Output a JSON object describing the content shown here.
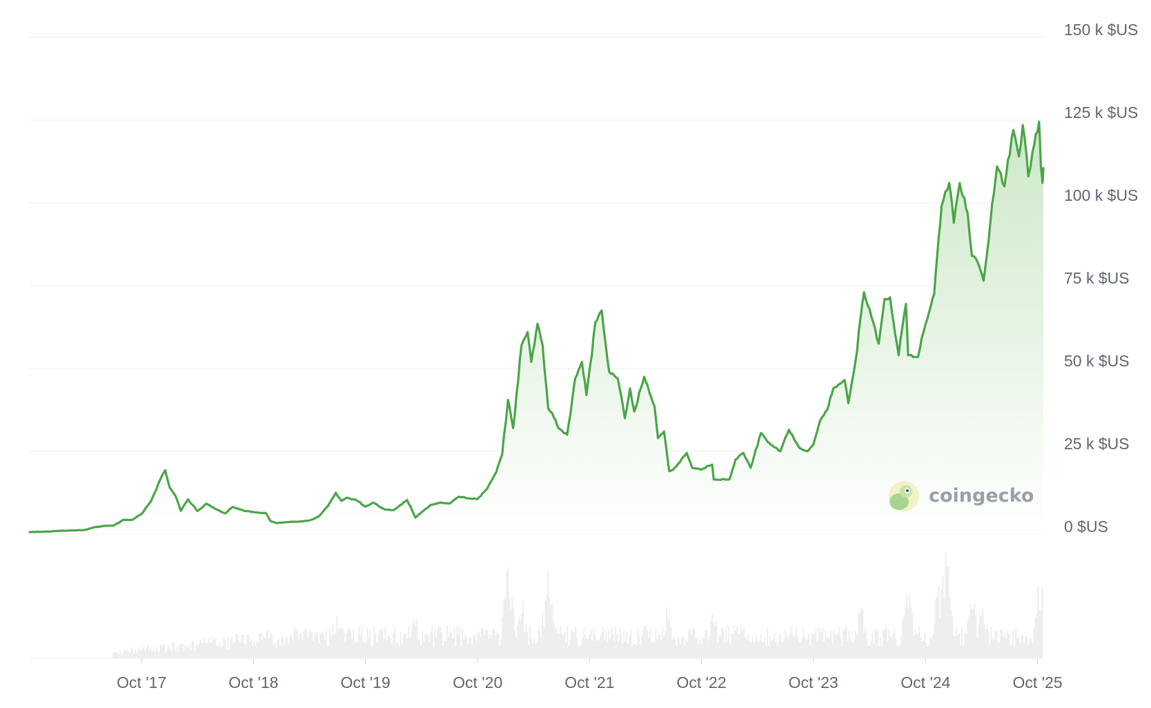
{
  "chart_data": {
    "type": "area",
    "title": "",
    "xlabel": "",
    "ylabel": "",
    "ylim": [
      0,
      150000
    ],
    "y_unit": "$US",
    "y_ticks": [
      {
        "value": 0,
        "label": "0 $US"
      },
      {
        "value": 25000,
        "label": "25 k $US"
      },
      {
        "value": 50000,
        "label": "50 k $US"
      },
      {
        "value": 75000,
        "label": "75 k $US"
      },
      {
        "value": 100000,
        "label": "100 k $US"
      },
      {
        "value": 125000,
        "label": "125 k $US"
      },
      {
        "value": 150000,
        "label": "150 k $US"
      }
    ],
    "x_range": [
      "2016-10-01",
      "2025-10-20"
    ],
    "x_ticks": [
      {
        "date": "2017-10-01",
        "label": "Oct '17"
      },
      {
        "date": "2018-10-01",
        "label": "Oct '18"
      },
      {
        "date": "2019-10-01",
        "label": "Oct '19"
      },
      {
        "date": "2020-10-01",
        "label": "Oct '20"
      },
      {
        "date": "2021-10-01",
        "label": "Oct '21"
      },
      {
        "date": "2022-10-01",
        "label": "Oct '22"
      },
      {
        "date": "2023-10-01",
        "label": "Oct '23"
      },
      {
        "date": "2024-10-01",
        "label": "Oct '24"
      },
      {
        "date": "2025-10-01",
        "label": "Oct '25"
      }
    ],
    "grid": true,
    "colors": {
      "line": "#4aa547",
      "fill_top": "#cde8c8",
      "volume": "#eeeef1"
    },
    "series": [
      {
        "values": [
          [
            "2016-10-01",
            610
          ],
          [
            "2016-12-01",
            780
          ],
          [
            "2017-01-01",
            1000
          ],
          [
            "2017-02-01",
            1050
          ],
          [
            "2017-03-01",
            1150
          ],
          [
            "2017-04-01",
            1300
          ],
          [
            "2017-05-01",
            2100
          ],
          [
            "2017-06-01",
            2500
          ],
          [
            "2017-07-01",
            2550
          ],
          [
            "2017-08-01",
            4300
          ],
          [
            "2017-09-01",
            4300
          ],
          [
            "2017-10-01",
            6100
          ],
          [
            "2017-11-01",
            10000
          ],
          [
            "2017-12-01",
            16500
          ],
          [
            "2017-12-17",
            19300
          ],
          [
            "2018-01-01",
            14000
          ],
          [
            "2018-01-20",
            11500
          ],
          [
            "2018-02-06",
            7000
          ],
          [
            "2018-03-01",
            10500
          ],
          [
            "2018-04-01",
            7000
          ],
          [
            "2018-05-01",
            9200
          ],
          [
            "2018-06-01",
            7500
          ],
          [
            "2018-07-01",
            6300
          ],
          [
            "2018-07-25",
            8200
          ],
          [
            "2018-09-01",
            7000
          ],
          [
            "2018-10-15",
            6500
          ],
          [
            "2018-11-10",
            6400
          ],
          [
            "2018-11-25",
            4000
          ],
          [
            "2018-12-15",
            3300
          ],
          [
            "2019-01-15",
            3600
          ],
          [
            "2019-03-01",
            3800
          ],
          [
            "2019-04-01",
            4100
          ],
          [
            "2019-05-01",
            5300
          ],
          [
            "2019-06-01",
            8500
          ],
          [
            "2019-06-26",
            12500
          ],
          [
            "2019-07-15",
            10000
          ],
          [
            "2019-08-01",
            11000
          ],
          [
            "2019-09-01",
            10300
          ],
          [
            "2019-10-01",
            8300
          ],
          [
            "2019-10-26",
            9500
          ],
          [
            "2019-12-01",
            7500
          ],
          [
            "2020-01-01",
            7200
          ],
          [
            "2020-02-14",
            10300
          ],
          [
            "2020-03-12",
            5000
          ],
          [
            "2020-04-01",
            6600
          ],
          [
            "2020-05-01",
            8800
          ],
          [
            "2020-06-01",
            9500
          ],
          [
            "2020-07-01",
            9200
          ],
          [
            "2020-08-01",
            11300
          ],
          [
            "2020-09-01",
            10800
          ],
          [
            "2020-10-01",
            10600
          ],
          [
            "2020-11-01",
            13700
          ],
          [
            "2020-12-01",
            18800
          ],
          [
            "2020-12-20",
            24000
          ],
          [
            "2021-01-08",
            40500
          ],
          [
            "2021-01-25",
            32000
          ],
          [
            "2021-02-21",
            57000
          ],
          [
            "2021-03-13",
            61000
          ],
          [
            "2021-03-25",
            52000
          ],
          [
            "2021-04-14",
            63500
          ],
          [
            "2021-05-01",
            57000
          ],
          [
            "2021-05-19",
            38000
          ],
          [
            "2021-06-01",
            36500
          ],
          [
            "2021-06-22",
            32000
          ],
          [
            "2021-07-20",
            30000
          ],
          [
            "2021-08-15",
            47000
          ],
          [
            "2021-09-06",
            52000
          ],
          [
            "2021-09-21",
            42000
          ],
          [
            "2021-10-20",
            64000
          ],
          [
            "2021-11-10",
            67500
          ],
          [
            "2021-12-04",
            49000
          ],
          [
            "2022-01-01",
            47000
          ],
          [
            "2022-01-24",
            35000
          ],
          [
            "2022-02-10",
            44000
          ],
          [
            "2022-02-24",
            37000
          ],
          [
            "2022-03-28",
            47500
          ],
          [
            "2022-05-01",
            38500
          ],
          [
            "2022-05-12",
            29000
          ],
          [
            "2022-06-01",
            31000
          ],
          [
            "2022-06-18",
            19000
          ],
          [
            "2022-07-01",
            19500
          ],
          [
            "2022-08-14",
            24500
          ],
          [
            "2022-09-01",
            20000
          ],
          [
            "2022-10-01",
            19500
          ],
          [
            "2022-11-05",
            21000
          ],
          [
            "2022-11-10",
            16500
          ],
          [
            "2022-12-31",
            16500
          ],
          [
            "2023-01-20",
            22500
          ],
          [
            "2023-02-15",
            24500
          ],
          [
            "2023-03-10",
            20000
          ],
          [
            "2023-04-13",
            30500
          ],
          [
            "2023-05-15",
            27000
          ],
          [
            "2023-06-15",
            25000
          ],
          [
            "2023-07-13",
            31500
          ],
          [
            "2023-08-17",
            26000
          ],
          [
            "2023-09-11",
            25000
          ],
          [
            "2023-10-01",
            27000
          ],
          [
            "2023-10-24",
            34500
          ],
          [
            "2023-11-15",
            37500
          ],
          [
            "2023-12-05",
            44000
          ],
          [
            "2024-01-11",
            46500
          ],
          [
            "2024-01-23",
            39500
          ],
          [
            "2024-02-15",
            52000
          ],
          [
            "2024-03-14",
            73000
          ],
          [
            "2024-04-01",
            68000
          ],
          [
            "2024-05-01",
            57500
          ],
          [
            "2024-05-20",
            71000
          ],
          [
            "2024-06-07",
            71500
          ],
          [
            "2024-07-05",
            54000
          ],
          [
            "2024-07-29",
            69500
          ],
          [
            "2024-08-05",
            54000
          ],
          [
            "2024-09-06",
            53500
          ],
          [
            "2024-10-01",
            63500
          ],
          [
            "2024-10-29",
            72500
          ],
          [
            "2024-11-13",
            90000
          ],
          [
            "2024-11-22",
            99000
          ],
          [
            "2024-12-17",
            106000
          ],
          [
            "2025-01-01",
            94000
          ],
          [
            "2025-01-20",
            106000
          ],
          [
            "2025-02-15",
            97000
          ],
          [
            "2025-03-01",
            84000
          ],
          [
            "2025-03-15",
            83000
          ],
          [
            "2025-04-08",
            76500
          ],
          [
            "2025-05-01",
            95000
          ],
          [
            "2025-05-22",
            111000
          ],
          [
            "2025-06-15",
            105000
          ],
          [
            "2025-07-14",
            122000
          ],
          [
            "2025-08-01",
            114000
          ],
          [
            "2025-08-14",
            123500
          ],
          [
            "2025-09-01",
            108000
          ],
          [
            "2025-09-15",
            115500
          ],
          [
            "2025-10-06",
            124500
          ],
          [
            "2025-10-12",
            111000
          ],
          [
            "2025-10-17",
            106000
          ],
          [
            "2025-10-20",
            110500
          ]
        ]
      }
    ],
    "legend": "none",
    "brand_label": "coingecko"
  }
}
